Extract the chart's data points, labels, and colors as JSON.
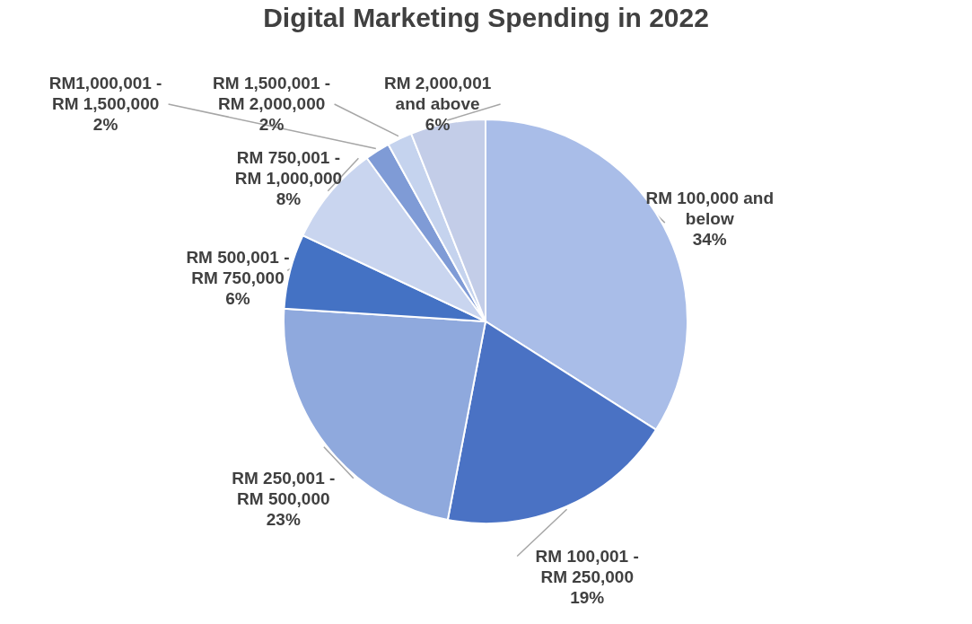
{
  "chart_data": {
    "type": "pie",
    "title": "Digital Marketing Spending in 2022",
    "categories": [
      "RM 100,000 and below",
      "RM 100,001 - RM 250,000",
      "RM 250,001 - RM 500,000",
      "RM 500,001 - RM 750,000",
      "RM 750,001 - RM 1,000,000",
      "RM1,000,001 - RM 1,500,000",
      "RM 1,500,001 - RM 2,000,000",
      "RM 2,000,001 and above"
    ],
    "values": [
      34,
      19,
      23,
      6,
      8,
      2,
      2,
      6
    ],
    "value_labels": [
      "34%",
      "19%",
      "23%",
      "6%",
      "8%",
      "2%",
      "2%",
      "6%"
    ],
    "colors": [
      "#a9bde8",
      "#4a72c4",
      "#8fa9dd",
      "#4472c4",
      "#c9d5ef",
      "#7f9bd6",
      "#c5d3ee",
      "#c3cde8"
    ],
    "legend": false
  }
}
